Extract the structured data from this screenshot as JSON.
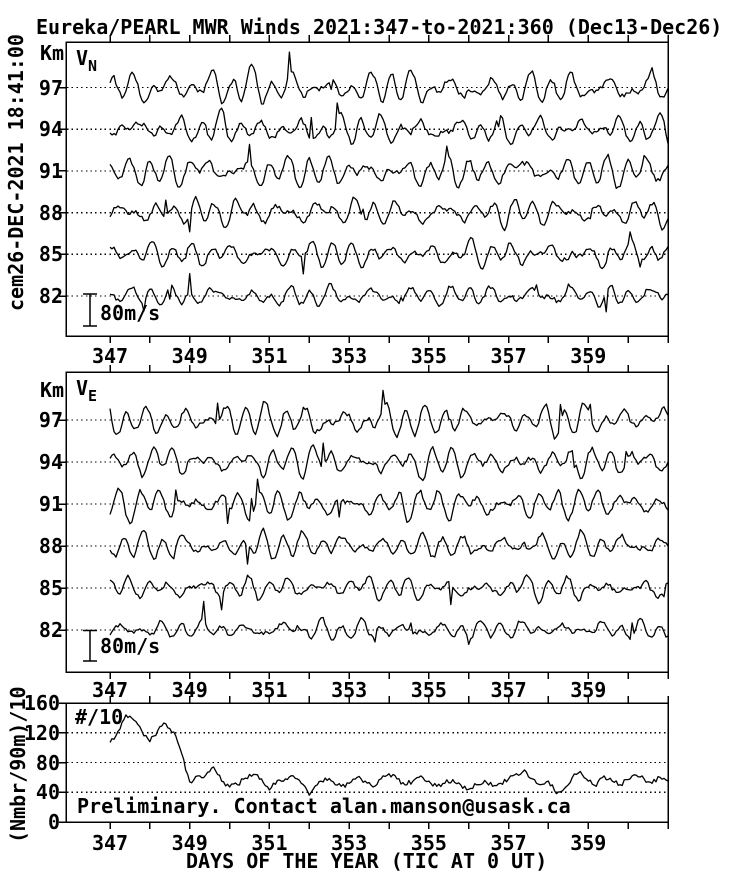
{
  "title": "Eureka/PEARL MWR Winds 2021:347-to-2021:360 (Dec13-Dec26)",
  "left_timestamp": "cem26-DEC-2021 18:41:00",
  "axis": {
    "km_unit": "Km",
    "x_label": "DAYS OF THE YEAR (TIC AT 0 UT)",
    "x_tick_labels": [
      347,
      349,
      351,
      353,
      355,
      357,
      359
    ],
    "x_day_min": 347,
    "x_day_max": 361,
    "altitudes_km": [
      97,
      94,
      91,
      88,
      85,
      82
    ]
  },
  "panels": {
    "vn": {
      "label_main": "V",
      "label_sub": "N",
      "scale_bar": "80m/s"
    },
    "ve": {
      "label_main": "V",
      "label_sub": "E",
      "scale_bar": "80m/s"
    },
    "counts": {
      "label": "#/10",
      "y_label": "(Nmbr/90m)/10",
      "y_ticks": [
        0,
        40,
        80,
        120,
        160
      ],
      "note": "Preliminary. Contact alan.manson@usask.ca"
    }
  },
  "colors": {
    "ink": "#000000",
    "background": "#ffffff"
  },
  "chart_data": [
    {
      "type": "line",
      "title": "VN northward wind, one zero-centered trace per altitude",
      "xlabel": "DAYS OF THE YEAR (TIC AT 0 UT)",
      "ylabel": "Km",
      "x_range": [
        345.9,
        361.0
      ],
      "x_ticks": [
        347,
        348,
        349,
        350,
        351,
        352,
        353,
        354,
        355,
        356,
        357,
        358,
        359,
        360,
        361
      ],
      "x_tick_labels": [
        347,
        349,
        351,
        353,
        355,
        357,
        359
      ],
      "altitudes_km": [
        97,
        94,
        91,
        88,
        85,
        82
      ],
      "scale_bar_ms": 80,
      "grid": "dotted zero line per altitude",
      "series": [
        {
          "name": "97 km",
          "altitude_km": 97,
          "seed": 101,
          "amp_semidiurnal_ms": 30,
          "amp_diurnal_ms": 14,
          "amp_noise_ms": 14,
          "spike_ms": 60
        },
        {
          "name": "94 km",
          "altitude_km": 94,
          "seed": 102,
          "amp_semidiurnal_ms": 26,
          "amp_diurnal_ms": 12,
          "amp_noise_ms": 13,
          "spike_ms": 60
        },
        {
          "name": "91 km",
          "altitude_km": 91,
          "seed": 103,
          "amp_semidiurnal_ms": 28,
          "amp_diurnal_ms": 11,
          "amp_noise_ms": 13,
          "spike_ms": 60
        },
        {
          "name": "88 km",
          "altitude_km": 88,
          "seed": 104,
          "amp_semidiurnal_ms": 24,
          "amp_diurnal_ms": 12,
          "amp_noise_ms": 12,
          "spike_ms": 55
        },
        {
          "name": "85 km",
          "altitude_km": 85,
          "seed": 105,
          "amp_semidiurnal_ms": 22,
          "amp_diurnal_ms": 10,
          "amp_noise_ms": 12,
          "spike_ms": 55
        },
        {
          "name": "82 km",
          "altitude_km": 82,
          "seed": 106,
          "amp_semidiurnal_ms": 17,
          "amp_diurnal_ms": 9,
          "amp_noise_ms": 11,
          "spike_ms": 50
        }
      ]
    },
    {
      "type": "line",
      "title": "VE eastward wind, one zero-centered trace per altitude",
      "xlabel": "DAYS OF THE YEAR (TIC AT 0 UT)",
      "ylabel": "Km",
      "x_range": [
        345.9,
        361.0
      ],
      "x_ticks": [
        347,
        348,
        349,
        350,
        351,
        352,
        353,
        354,
        355,
        356,
        357,
        358,
        359,
        360,
        361
      ],
      "x_tick_labels": [
        347,
        349,
        351,
        353,
        355,
        357,
        359
      ],
      "altitudes_km": [
        97,
        94,
        91,
        88,
        85,
        82
      ],
      "scale_bar_ms": 80,
      "grid": "dotted zero line per altitude",
      "series": [
        {
          "name": "97 km",
          "altitude_km": 97,
          "seed": 201,
          "amp_semidiurnal_ms": 32,
          "amp_diurnal_ms": 14,
          "amp_noise_ms": 15,
          "spike_ms": 60
        },
        {
          "name": "94 km",
          "altitude_km": 94,
          "seed": 202,
          "amp_semidiurnal_ms": 28,
          "amp_diurnal_ms": 12,
          "amp_noise_ms": 14,
          "spike_ms": 60
        },
        {
          "name": "91 km",
          "altitude_km": 91,
          "seed": 203,
          "amp_semidiurnal_ms": 30,
          "amp_diurnal_ms": 12,
          "amp_noise_ms": 13,
          "spike_ms": 60
        },
        {
          "name": "88 km",
          "altitude_km": 88,
          "seed": 204,
          "amp_semidiurnal_ms": 26,
          "amp_diurnal_ms": 11,
          "amp_noise_ms": 13,
          "spike_ms": 55
        },
        {
          "name": "85 km",
          "altitude_km": 85,
          "seed": 205,
          "amp_semidiurnal_ms": 22,
          "amp_diurnal_ms": 10,
          "amp_noise_ms": 12,
          "spike_ms": 55
        },
        {
          "name": "82 km",
          "altitude_km": 82,
          "seed": 206,
          "amp_semidiurnal_ms": 18,
          "amp_diurnal_ms": 9,
          "amp_noise_ms": 11,
          "spike_ms": 50
        }
      ]
    },
    {
      "type": "line",
      "title": "Meteor count rate (Nmbr/90m)/10",
      "ylabel": "(Nmbr/90m)/10",
      "ylim": [
        0,
        160
      ],
      "y_ticks": [
        0,
        40,
        80,
        120,
        160
      ],
      "x_start": 347.0,
      "x_step": 0.2,
      "jitter_seed": 777,
      "values": [
        107,
        122,
        144,
        137,
        122,
        108,
        123,
        132,
        121,
        92,
        54,
        62,
        63,
        74,
        55,
        47,
        50,
        59,
        64,
        58,
        43,
        56,
        58,
        62,
        52,
        36,
        50,
        59,
        54,
        48,
        52,
        60,
        55,
        47,
        58,
        65,
        58,
        50,
        55,
        62,
        55,
        48,
        52,
        57,
        50,
        44,
        50,
        56,
        48,
        52,
        58,
        65,
        70,
        58,
        50,
        55,
        38,
        45,
        60,
        68,
        55,
        48,
        62,
        55,
        50,
        57,
        63,
        58,
        52,
        60,
        55
      ]
    }
  ]
}
